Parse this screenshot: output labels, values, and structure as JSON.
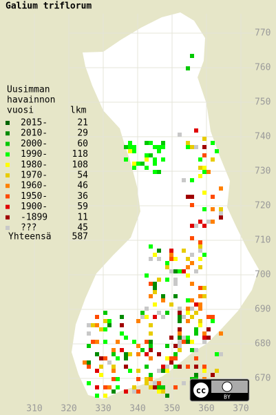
{
  "title": "Galium triflorum",
  "legend": {
    "header": [
      "Uusimman",
      "havainnon",
      "vuosi"
    ],
    "count_header": "lkm",
    "rows": [
      {
        "label": "2015-",
        "count": 21,
        "color": "#006400"
      },
      {
        "label": "2010-",
        "count": 29,
        "color": "#008a00"
      },
      {
        "label": "2000-",
        "count": 60,
        "color": "#00c800"
      },
      {
        "label": "1990-",
        "count": 118,
        "color": "#00ff00"
      },
      {
        "label": "1980-",
        "count": 108,
        "color": "#ffff00"
      },
      {
        "label": "1970-",
        "count": 54,
        "color": "#e8cc00"
      },
      {
        "label": "1960-",
        "count": 46,
        "color": "#ff8000"
      },
      {
        "label": "1950-",
        "count": 36,
        "color": "#ff4a00"
      },
      {
        "label": "1900-",
        "count": 59,
        "color": "#e00000"
      },
      {
        "label": "-1899",
        "count": 11,
        "color": "#a00000"
      },
      {
        "label": "???",
        "count": 45,
        "color": "#c8c8c8"
      }
    ],
    "total_label": "Yhteensä",
    "total": 587
  },
  "grid": {
    "xticks": [
      310,
      320,
      330,
      340,
      350,
      360,
      370
    ],
    "yticks": [
      770,
      760,
      750,
      740,
      730,
      720,
      710,
      700,
      690,
      680,
      670
    ]
  },
  "license": {
    "cc": "cc",
    "by": "BY"
  }
}
